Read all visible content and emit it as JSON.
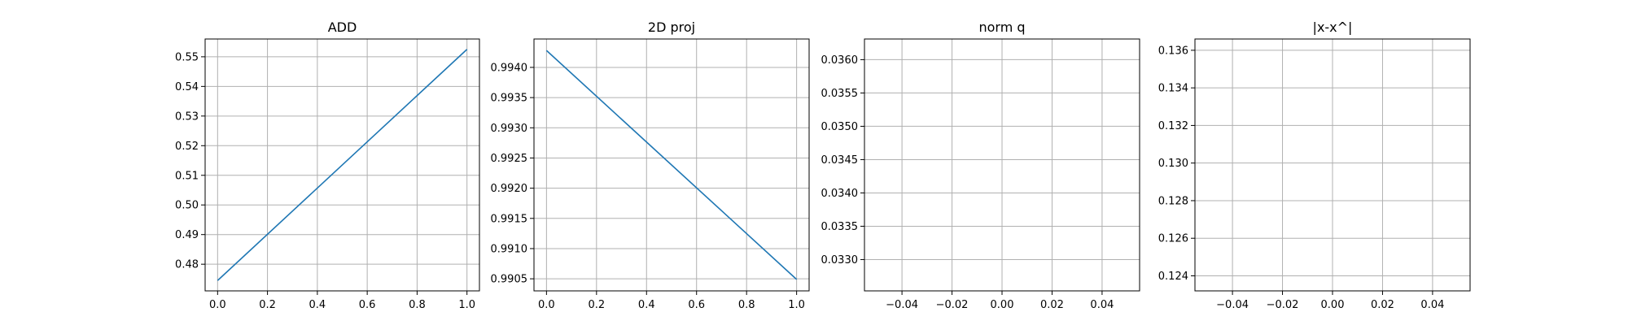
{
  "chart_data": [
    {
      "type": "line",
      "title": "ADD",
      "x": [
        0.0,
        1.0
      ],
      "series": [
        {
          "values": [
            0.4745,
            0.5525
          ]
        }
      ],
      "xlim": [
        -0.05,
        1.05
      ],
      "ylim": [
        0.471,
        0.556
      ],
      "xticks": [
        0.0,
        0.2,
        0.4,
        0.6,
        0.8,
        1.0
      ],
      "xtick_labels": [
        "0.0",
        "0.2",
        "0.4",
        "0.6",
        "0.8",
        "1.0"
      ],
      "yticks": [
        0.48,
        0.49,
        0.5,
        0.51,
        0.52,
        0.53,
        0.54,
        0.55
      ],
      "ytick_labels": [
        "0.48",
        "0.49",
        "0.50",
        "0.51",
        "0.52",
        "0.53",
        "0.54",
        "0.55"
      ],
      "grid": true,
      "color": "#1f77b4"
    },
    {
      "type": "line",
      "title": "2D proj",
      "x": [
        0.0,
        1.0
      ],
      "series": [
        {
          "values": [
            0.99428,
            0.99049
          ]
        }
      ],
      "xlim": [
        -0.05,
        1.05
      ],
      "ylim": [
        0.9903,
        0.99447
      ],
      "xticks": [
        0.0,
        0.2,
        0.4,
        0.6,
        0.8,
        1.0
      ],
      "xtick_labels": [
        "0.0",
        "0.2",
        "0.4",
        "0.6",
        "0.8",
        "1.0"
      ],
      "yticks": [
        0.9905,
        0.991,
        0.9915,
        0.992,
        0.9925,
        0.993,
        0.9935,
        0.994
      ],
      "ytick_labels": [
        "0.9905",
        "0.9910",
        "0.9915",
        "0.9920",
        "0.9925",
        "0.9930",
        "0.9935",
        "0.9940"
      ],
      "grid": true,
      "color": "#1f77b4"
    },
    {
      "type": "line",
      "title": "norm q",
      "x": [],
      "series": [
        {
          "values": []
        }
      ],
      "xlim": [
        -0.055,
        0.055
      ],
      "ylim": [
        0.03253,
        0.03631
      ],
      "xticks": [
        -0.04,
        -0.02,
        0.0,
        0.02,
        0.04
      ],
      "xtick_labels": [
        "−0.04",
        "−0.02",
        "0.00",
        "0.02",
        "0.04"
      ],
      "yticks": [
        0.033,
        0.0335,
        0.034,
        0.0345,
        0.035,
        0.0355,
        0.036
      ],
      "ytick_labels": [
        "0.0330",
        "0.0335",
        "0.0340",
        "0.0345",
        "0.0350",
        "0.0355",
        "0.0360"
      ],
      "grid": true,
      "color": "#1f77b4"
    },
    {
      "type": "line",
      "title": "|x-x^|",
      "x": [],
      "series": [
        {
          "values": []
        }
      ],
      "xlim": [
        -0.055,
        0.055
      ],
      "ylim": [
        0.1232,
        0.1366
      ],
      "xticks": [
        -0.04,
        -0.02,
        0.0,
        0.02,
        0.04
      ],
      "xtick_labels": [
        "−0.04",
        "−0.02",
        "0.00",
        "0.02",
        "0.04"
      ],
      "yticks": [
        0.124,
        0.126,
        0.128,
        0.13,
        0.132,
        0.134,
        0.136
      ],
      "ytick_labels": [
        "0.124",
        "0.126",
        "0.128",
        "0.130",
        "0.132",
        "0.134",
        "0.136"
      ],
      "grid": true,
      "color": "#1f77b4"
    }
  ]
}
